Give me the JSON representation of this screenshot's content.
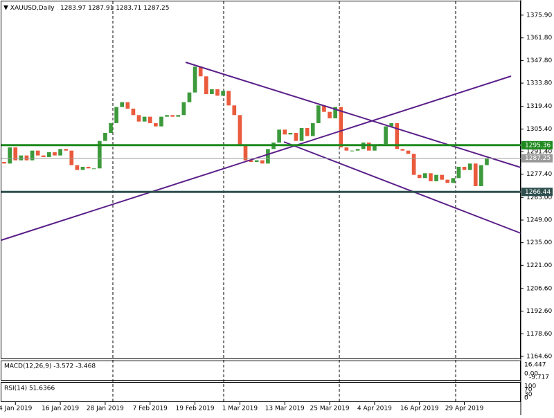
{
  "chart_data": {
    "type": "candlestick",
    "title": "XAUUSD,Daily",
    "quote": [
      1283.97,
      1287.91,
      1283.71,
      1287.25
    ],
    "categories": [
      null,
      null,
      "4 Jan 2019",
      null,
      null,
      null,
      null,
      null,
      null,
      null,
      "16 Jan 2019",
      null,
      null,
      null,
      null,
      null,
      null,
      null,
      "28 Jan 2019",
      null,
      null,
      null,
      null,
      null,
      null,
      null,
      "7 Feb 2019",
      null,
      null,
      null,
      null,
      null,
      null,
      null,
      "19 Feb 2019",
      null,
      null,
      null,
      null,
      null,
      null,
      null,
      "1 Mar 2019",
      null,
      null,
      null,
      null,
      null,
      null,
      null,
      "13 Mar 2019",
      null,
      null,
      null,
      null,
      null,
      null,
      null,
      "25 Mar 2019",
      null,
      null,
      null,
      null,
      null,
      null,
      null,
      "4 Apr 2019",
      null,
      null,
      null,
      null,
      null,
      null,
      null,
      "16 Apr 2019",
      null,
      null,
      null,
      null,
      null,
      null,
      null,
      "29 Apr 2019",
      null,
      null,
      null,
      null
    ],
    "open": [
      1285,
      1284,
      1294,
      1286,
      1289,
      1286,
      1292,
      1289,
      1288,
      1291,
      1289,
      1293,
      1292,
      1283,
      1280,
      1282,
      1281,
      1281,
      1298,
      1303,
      1309,
      1319,
      1322,
      1318,
      1314,
      1310,
      1313,
      1309,
      1307,
      1313,
      1314,
      1313,
      1314,
      1322,
      1328,
      1344,
      1338,
      1327,
      1330,
      1326,
      1329,
      1320,
      1314,
      1295,
      1286,
      1285,
      1286,
      1284,
      1293,
      1297,
      1305,
      1302,
      1303,
      1298,
      1306,
      1301,
      1309,
      1320,
      1316,
      1312,
      1319,
      1294,
      1292,
      1292,
      1293,
      1297,
      1292,
      1295,
      1296,
      1307,
      1309,
      1293,
      1292,
      1290,
      1277,
      1275,
      1278,
      1273,
      1277,
      1274,
      1272,
      1275,
      1282,
      1280,
      1284,
      1270,
      1283
    ],
    "close": [
      1284,
      1294,
      1286,
      1289,
      1286,
      1292,
      1289,
      1288,
      1291,
      1289,
      1293,
      1292,
      1283,
      1280,
      1282,
      1281,
      1281,
      1298,
      1303,
      1309,
      1319,
      1322,
      1318,
      1314,
      1310,
      1313,
      1309,
      1307,
      1313,
      1314,
      1313,
      1314,
      1322,
      1328,
      1344,
      1338,
      1327,
      1330,
      1326,
      1329,
      1320,
      1314,
      1295,
      1286,
      1285,
      1286,
      1284,
      1293,
      1297,
      1305,
      1302,
      1303,
      1298,
      1306,
      1301,
      1309,
      1320,
      1316,
      1312,
      1319,
      1294,
      1292,
      1292,
      1293,
      1297,
      1292,
      1295,
      1296,
      1307,
      1309,
      1293,
      1292,
      1290,
      1277,
      1275,
      1278,
      1273,
      1277,
      1274,
      1272,
      1275,
      1282,
      1280,
      1284,
      1270,
      1283,
      1287
    ],
    "up_color": "#3c9a3c",
    "down_color": "#ea5a3c",
    "ylim": [
      1163.3,
      1384.4
    ],
    "yticks": [
      {
        "value": 1375.9,
        "label": "1375.90"
      },
      {
        "value": 1361.8,
        "label": "1361.80"
      },
      {
        "value": 1347.8,
        "label": "1347.80"
      },
      {
        "value": 1333.8,
        "label": "1333.80"
      },
      {
        "value": 1319.4,
        "label": "1319.40"
      },
      {
        "value": 1305.4,
        "label": "1305.40"
      },
      {
        "value": 1291.4,
        "label": "1291.40"
      },
      {
        "value": 1277.4,
        "label": "1277.40"
      },
      {
        "value": 1263,
        "label": "1263.00"
      },
      {
        "value": 1249,
        "label": "1249.00"
      },
      {
        "value": 1235,
        "label": "1235.00"
      },
      {
        "value": 1221,
        "label": "1221.00"
      },
      {
        "value": 1206.6,
        "label": "1206.60"
      },
      {
        "value": 1192.6,
        "label": "1192.60"
      },
      {
        "value": 1178.6,
        "label": "1178.60"
      },
      {
        "value": 1164.6,
        "label": "1164.60"
      }
    ],
    "price_lines": [
      {
        "value": 1295.36,
        "color": "#1e8a1e"
      },
      {
        "value": 1287.25,
        "color": "#9a9a9a"
      },
      {
        "value": 1266.44,
        "color": "#2f4f4f"
      }
    ],
    "indicators": [
      {
        "label": "MACD(12,26,9) -3.572 -3.468",
        "axis_labels": [
          "16.447",
          "0.00",
          "-9.717"
        ]
      },
      {
        "label": "RSI(14) 51.6366",
        "axis_labels": [
          "100",
          "70",
          "30",
          "0"
        ]
      }
    ]
  }
}
